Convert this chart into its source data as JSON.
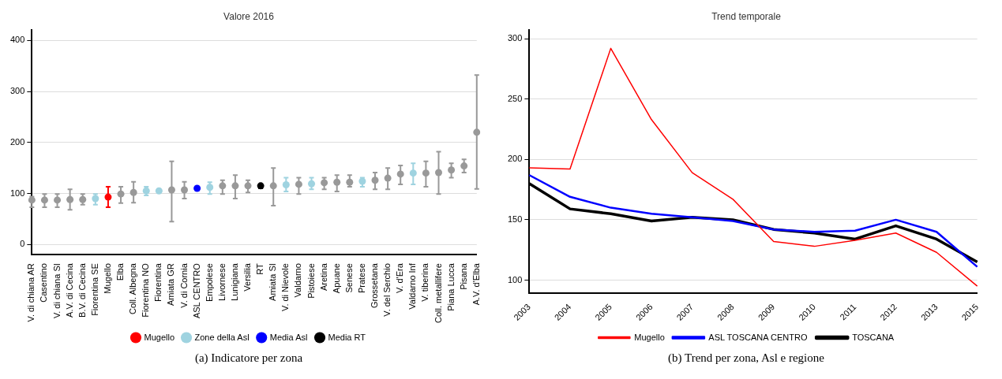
{
  "chart_data": [
    {
      "type": "scatter",
      "title": "Valore 2016",
      "annotations": [
        "(a) Indicatore per zona"
      ],
      "categories": [
        "V. di chiana AR",
        "Casentino",
        "V. di chiana SI",
        "A.V. di Cecina",
        "B.V. di Cecina",
        "Fiorentina SE",
        "Mugello",
        "Elba",
        "Coll. Albegna",
        "Fiorentina NO",
        "Fiorentina",
        "Amiata GR",
        "V. di Cornia",
        "ASL CENTRO",
        "Empolese",
        "Livornese",
        "Lunigiana",
        "Versilia",
        "RT",
        "Amiata SI",
        "V. di Nievole",
        "Valdarno",
        "Pistoiese",
        "Aretina",
        "Apuane",
        "Senese",
        "Pratese",
        "Grossetana",
        "V. del Serchio",
        "V. d'Era",
        "Valdarno Inf",
        "V. tiberina",
        "Coll. metallifere",
        "Piana Lucca",
        "Pisana",
        "A.V. d'Elba"
      ],
      "series": [
        {
          "color": "#999999",
          "values": [
            87,
            87,
            87,
            88,
            88,
            null,
            null,
            99,
            102,
            null,
            null,
            107,
            107,
            null,
            null,
            115,
            115,
            115,
            null,
            115,
            null,
            118,
            null,
            121,
            122,
            122,
            null,
            126,
            130,
            138,
            null,
            140,
            141,
            146,
            154,
            220
          ],
          "errors": [
            [
              73,
              94
            ],
            [
              73,
              99
            ],
            [
              73,
              99
            ],
            [
              68,
              108
            ],
            [
              78,
              99
            ],
            null,
            null,
            [
              81,
              113
            ],
            [
              82,
              123
            ],
            null,
            null,
            [
              45,
              163
            ],
            [
              90,
              123
            ],
            null,
            null,
            [
              99,
              126
            ],
            [
              90,
              136
            ],
            [
              102,
              126
            ],
            null,
            [
              76,
              150
            ],
            null,
            [
              99,
              131
            ],
            null,
            [
              108,
              131
            ],
            [
              104,
              136
            ],
            [
              113,
              136
            ],
            null,
            [
              108,
              141
            ],
            [
              108,
              150
            ],
            [
              118,
              155
            ],
            null,
            [
              113,
              163
            ],
            [
              99,
              182
            ],
            [
              131,
              159
            ],
            [
              141,
              167
            ],
            [
              109,
              332
            ]
          ]
        },
        {
          "name": "Mugello",
          "color": "#ff0000",
          "values": [
            null,
            null,
            null,
            null,
            null,
            null,
            93,
            null,
            null,
            null,
            null,
            null,
            null,
            null,
            null,
            null,
            null,
            null,
            null,
            null,
            null,
            null,
            null,
            null,
            null,
            null,
            null,
            null,
            null,
            null,
            null,
            null,
            null,
            null,
            null,
            null
          ],
          "errors": [
            null,
            null,
            null,
            null,
            null,
            null,
            [
              73,
              113
            ],
            null,
            null,
            null,
            null,
            null,
            null,
            null,
            null,
            null,
            null,
            null,
            null,
            null,
            null,
            null,
            null,
            null,
            null,
            null,
            null,
            null,
            null,
            null,
            null,
            null,
            null,
            null,
            null,
            null
          ]
        },
        {
          "name": "Zone della Asl",
          "color": "#9fd3e0",
          "values": [
            null,
            null,
            null,
            null,
            null,
            90,
            null,
            null,
            null,
            105,
            105,
            null,
            null,
            null,
            112,
            null,
            null,
            null,
            null,
            null,
            117,
            null,
            119,
            null,
            null,
            null,
            124,
            null,
            null,
            null,
            140,
            null,
            null,
            null,
            null,
            null
          ],
          "errors": [
            null,
            null,
            null,
            null,
            null,
            [
              78,
              99
            ],
            null,
            null,
            null,
            [
              96,
              113
            ],
            null,
            null,
            null,
            null,
            [
              99,
              122
            ],
            null,
            null,
            null,
            null,
            null,
            [
              104,
              131
            ],
            null,
            [
              108,
              131
            ],
            null,
            null,
            null,
            [
              113,
              131
            ],
            null,
            null,
            null,
            [
              118,
              159
            ],
            null,
            null,
            null,
            null,
            null
          ]
        },
        {
          "name": "Media Asl",
          "color": "#0000ff",
          "values": [
            null,
            null,
            null,
            null,
            null,
            null,
            null,
            null,
            null,
            null,
            null,
            null,
            null,
            110,
            null,
            null,
            null,
            null,
            null,
            null,
            null,
            null,
            null,
            null,
            null,
            null,
            null,
            null,
            null,
            null,
            null,
            null,
            null,
            null,
            null,
            null
          ]
        },
        {
          "name": "Media RT",
          "color": "#000000",
          "values": [
            null,
            null,
            null,
            null,
            null,
            null,
            null,
            null,
            null,
            null,
            null,
            null,
            null,
            null,
            null,
            null,
            null,
            null,
            115,
            null,
            null,
            null,
            null,
            null,
            null,
            null,
            null,
            null,
            null,
            null,
            null,
            null,
            null,
            null,
            null,
            null
          ],
          "errors": [
            null,
            null,
            null,
            null,
            null,
            null,
            null,
            null,
            null,
            null,
            null,
            null,
            null,
            null,
            null,
            null,
            null,
            null,
            [
              110,
              118
            ],
            null,
            null,
            null,
            null,
            null,
            null,
            null,
            null,
            null,
            null,
            null,
            null,
            null,
            null,
            null,
            null,
            null
          ]
        }
      ],
      "ylim": [
        -20,
        420
      ],
      "yticks": [
        0,
        100,
        200,
        300,
        400
      ],
      "grid": "y",
      "legend": "bottom",
      "marker": "circle"
    },
    {
      "type": "line",
      "title": "Trend temporale",
      "annotations": [
        "(b) Trend per zona, Asl e regione"
      ],
      "categories": [
        "2003",
        "2004",
        "2005",
        "2006",
        "2007",
        "2008",
        "2009",
        "2010",
        "2011",
        "2012",
        "2013",
        "2015"
      ],
      "series": [
        {
          "name": "Mugello",
          "color": "#ff0000",
          "values": [
            193,
            192,
            292,
            233,
            189,
            167,
            132,
            128,
            133,
            139,
            123,
            95
          ]
        },
        {
          "name": "ASL TOSCANA CENTRO",
          "color": "#0000ff",
          "values": [
            187,
            169,
            160,
            155,
            152,
            149,
            142,
            140,
            141,
            150,
            140,
            111
          ]
        },
        {
          "name": "TOSCANA",
          "color": "#000000",
          "values": [
            180,
            159,
            155,
            149,
            152,
            150,
            142,
            139,
            134,
            145,
            134,
            115
          ]
        }
      ],
      "ylim": [
        89,
        307
      ],
      "yticks": [
        100,
        150,
        200,
        250,
        300
      ],
      "grid": "y",
      "legend": "bottom",
      "marker": "none",
      "line_style": "solid"
    }
  ]
}
